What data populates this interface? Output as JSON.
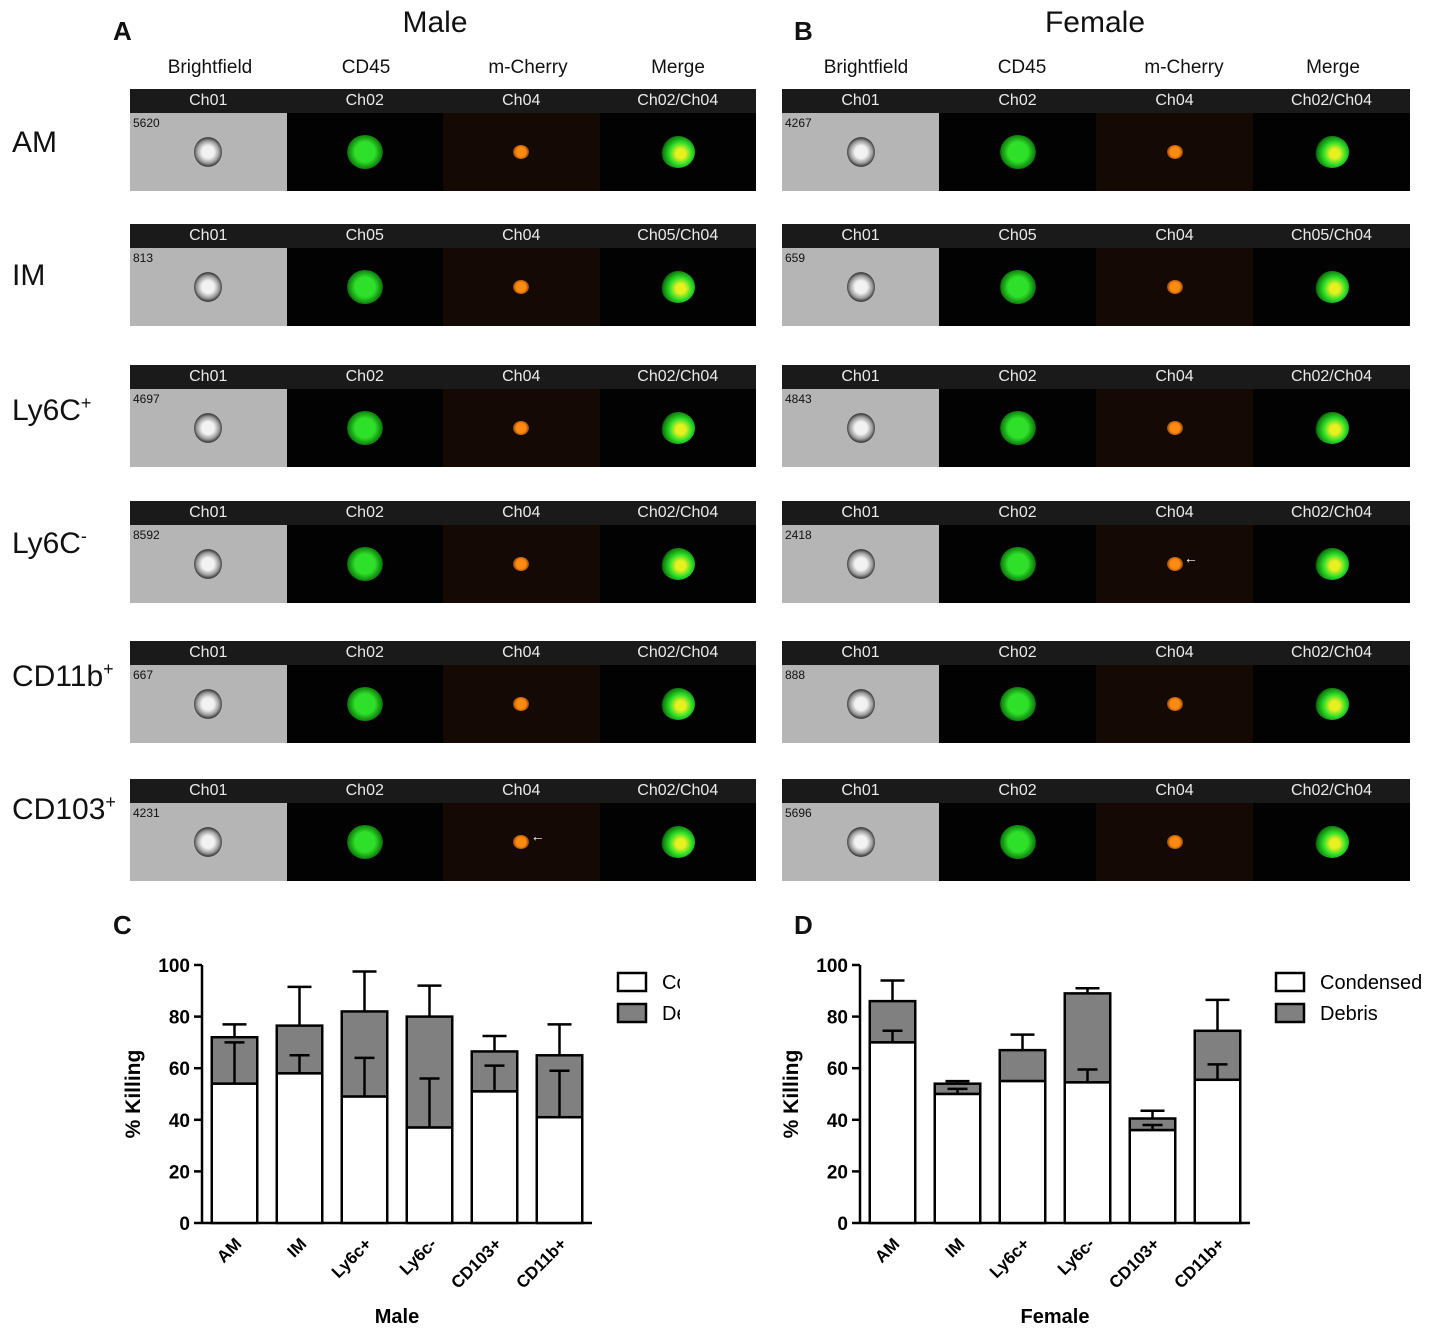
{
  "panels": {
    "A": "A",
    "B": "B",
    "C": "C",
    "D": "D"
  },
  "male": {
    "title": "Male",
    "col_headers": [
      "Brightfield",
      "CD45",
      "m-Cherry",
      "Merge"
    ],
    "rows": [
      {
        "label": "AM",
        "sup": "",
        "cell_id": "5620",
        "channels": [
          "Ch01",
          "Ch02",
          "Ch04",
          "Ch02/Ch04"
        ],
        "arrow": false
      },
      {
        "label": "IM",
        "sup": "",
        "cell_id": "813",
        "channels": [
          "Ch01",
          "Ch05",
          "Ch04",
          "Ch05/Ch04"
        ],
        "arrow": false
      },
      {
        "label": "Ly6C",
        "sup": "+",
        "cell_id": "4697",
        "channels": [
          "Ch01",
          "Ch02",
          "Ch04",
          "Ch02/Ch04"
        ],
        "arrow": false
      },
      {
        "label": "Ly6C",
        "sup": "-",
        "cell_id": "8592",
        "channels": [
          "Ch01",
          "Ch02",
          "Ch04",
          "Ch02/Ch04"
        ],
        "arrow": false
      },
      {
        "label": "CD11b",
        "sup": "+",
        "cell_id": "667",
        "channels": [
          "Ch01",
          "Ch02",
          "Ch04",
          "Ch02/Ch04"
        ],
        "arrow": false
      },
      {
        "label": "CD103",
        "sup": "+",
        "cell_id": "4231",
        "channels": [
          "Ch01",
          "Ch02",
          "Ch04",
          "Ch02/Ch04"
        ],
        "arrow": true
      }
    ]
  },
  "female": {
    "title": "Female",
    "col_headers": [
      "Brightfield",
      "CD45",
      "m-Cherry",
      "Merge"
    ],
    "rows": [
      {
        "cell_id": "4267",
        "channels": [
          "Ch01",
          "Ch02",
          "Ch04",
          "Ch02/Ch04"
        ],
        "arrow": false
      },
      {
        "cell_id": "659",
        "channels": [
          "Ch01",
          "Ch05",
          "Ch04",
          "Ch05/Ch04"
        ],
        "arrow": false
      },
      {
        "cell_id": "4843",
        "channels": [
          "Ch01",
          "Ch02",
          "Ch04",
          "Ch02/Ch04"
        ],
        "arrow": false
      },
      {
        "cell_id": "2418",
        "channels": [
          "Ch01",
          "Ch02",
          "Ch04",
          "Ch02/Ch04"
        ],
        "arrow": true
      },
      {
        "cell_id": "888",
        "channels": [
          "Ch01",
          "Ch02",
          "Ch04",
          "Ch02/Ch04"
        ],
        "arrow": false
      },
      {
        "cell_id": "5696",
        "channels": [
          "Ch01",
          "Ch02",
          "Ch04",
          "Ch02/Ch04"
        ],
        "arrow": false
      }
    ]
  },
  "colors": {
    "green": "#2fe02a",
    "orange": "#ff8a10",
    "yellow": "#e8f020",
    "bar_fill_condensed": "#ffffff",
    "bar_fill_debris": "#808080"
  },
  "chart_data": [
    {
      "type": "bar",
      "stacked": true,
      "categories": [
        "AM",
        "IM",
        "Ly6c+",
        "Ly6c-",
        "CD103+",
        "CD11b+"
      ],
      "xlabel": "Male",
      "ylabel": "% Killing",
      "ylim": [
        0,
        100
      ],
      "yticks": [
        0,
        20,
        40,
        60,
        80,
        100
      ],
      "legend_position": "top-right",
      "series": [
        {
          "name": "Condensed",
          "values": [
            54,
            58,
            49,
            37,
            51,
            41
          ],
          "error": [
            16,
            7,
            15,
            19,
            10,
            18
          ]
        },
        {
          "name": "Debris",
          "values": [
            18,
            18.5,
            33,
            43,
            15.5,
            24
          ],
          "error": [
            5,
            15,
            15.5,
            12,
            6,
            12
          ]
        }
      ]
    },
    {
      "type": "bar",
      "stacked": true,
      "categories": [
        "AM",
        "IM",
        "Ly6c+",
        "Ly6c-",
        "CD103+",
        "CD11b+"
      ],
      "xlabel": "Female",
      "ylabel": "% Killing",
      "ylim": [
        0,
        100
      ],
      "yticks": [
        0,
        20,
        40,
        60,
        80,
        100
      ],
      "legend_position": "top-right",
      "series": [
        {
          "name": "Condensed",
          "values": [
            70,
            50,
            55,
            54.5,
            36,
            55.5
          ],
          "error": [
            4.5,
            2,
            0,
            5,
            2,
            6
          ]
        },
        {
          "name": "Debris",
          "values": [
            16,
            4,
            12,
            34.5,
            4.5,
            19
          ],
          "error": [
            8,
            1,
            6,
            2,
            3,
            12
          ]
        }
      ]
    }
  ]
}
